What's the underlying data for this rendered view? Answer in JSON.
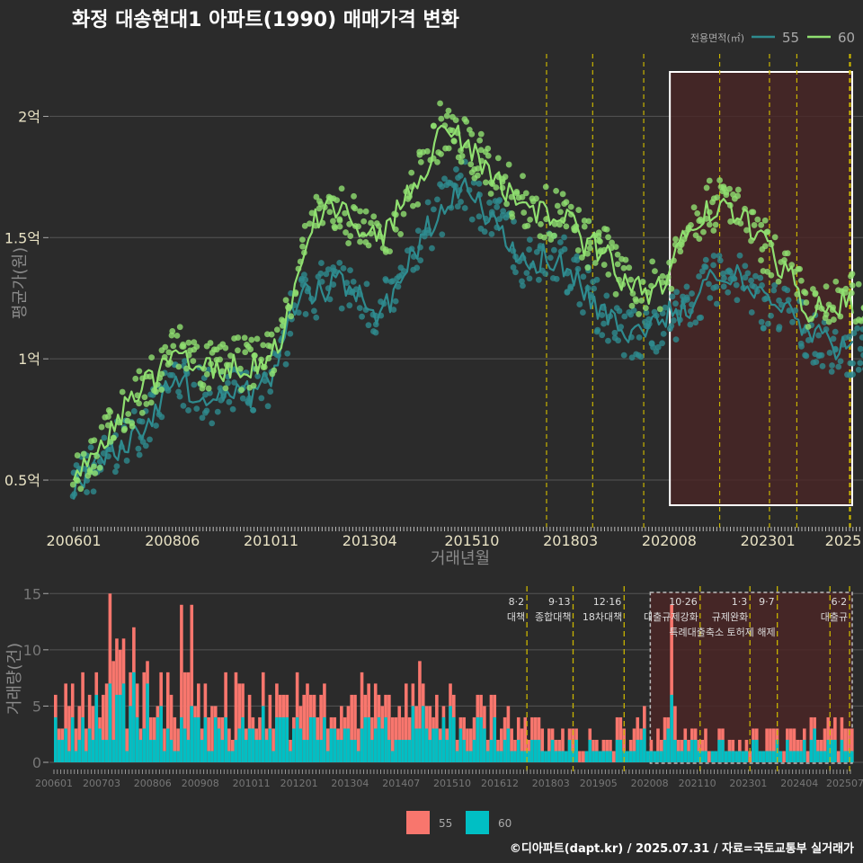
{
  "chart_data": [
    {
      "type": "line",
      "title": "화정 대송현대1 아파트(1990) 매매가격 변화",
      "xlabel": "거래년월",
      "ylabel": "평균가(원)",
      "x_ticks": [
        "200601",
        "200806",
        "201011",
        "201304",
        "201510",
        "201803",
        "202008",
        "202301",
        "2025"
      ],
      "y_ticks": [
        {
          "value": 0.5,
          "label": "0.5억"
        },
        {
          "value": 1.0,
          "label": "1억"
        },
        {
          "value": 1.5,
          "label": "1.5억"
        },
        {
          "value": 2.0,
          "label": "2억"
        }
      ],
      "y_unit": "억원",
      "ylim": [
        0.3,
        2.25
      ],
      "grid": true,
      "legend_title": "전용면적(㎡)",
      "legend_position": "top-right",
      "series": [
        {
          "name": "55",
          "color": "#2e8b8f",
          "anchors": [
            [
              2006.0,
              0.48
            ],
            [
              2006.5,
              0.55
            ],
            [
              2007.0,
              0.62
            ],
            [
              2007.5,
              0.7
            ],
            [
              2008.0,
              0.78
            ],
            [
              2008.5,
              0.92
            ],
            [
              2009.0,
              0.86
            ],
            [
              2009.5,
              0.84
            ],
            [
              2010.0,
              0.86
            ],
            [
              2010.5,
              0.86
            ],
            [
              2011.0,
              0.95
            ],
            [
              2011.5,
              1.28
            ],
            [
              2012.0,
              1.28
            ],
            [
              2012.5,
              1.32
            ],
            [
              2013.0,
              1.25
            ],
            [
              2013.5,
              1.18
            ],
            [
              2014.0,
              1.3
            ],
            [
              2014.5,
              1.5
            ],
            [
              2015.0,
              1.62
            ],
            [
              2015.5,
              1.72
            ],
            [
              2016.0,
              1.62
            ],
            [
              2016.5,
              1.55
            ],
            [
              2017.0,
              1.4
            ],
            [
              2017.5,
              1.42
            ],
            [
              2018.0,
              1.4
            ],
            [
              2018.5,
              1.3
            ],
            [
              2019.0,
              1.18
            ],
            [
              2019.5,
              1.1
            ],
            [
              2020.0,
              1.1
            ],
            [
              2020.5,
              1.18
            ],
            [
              2021.0,
              1.2
            ],
            [
              2021.5,
              1.3
            ],
            [
              2022.0,
              1.36
            ],
            [
              2022.5,
              1.3
            ],
            [
              2023.0,
              1.22
            ],
            [
              2023.5,
              1.2
            ],
            [
              2024.0,
              1.1
            ],
            [
              2024.5,
              1.06
            ],
            [
              2025.0,
              1.02
            ],
            [
              2025.5,
              1.02
            ]
          ]
        },
        {
          "name": "60",
          "color": "#90e070",
          "anchors": [
            [
              2006.0,
              0.54
            ],
            [
              2006.5,
              0.62
            ],
            [
              2007.0,
              0.72
            ],
            [
              2007.5,
              0.85
            ],
            [
              2008.0,
              0.92
            ],
            [
              2008.5,
              1.05
            ],
            [
              2009.0,
              0.98
            ],
            [
              2009.5,
              0.95
            ],
            [
              2010.0,
              0.98
            ],
            [
              2010.5,
              0.98
            ],
            [
              2011.0,
              1.05
            ],
            [
              2011.5,
              1.38
            ],
            [
              2012.0,
              1.6
            ],
            [
              2012.5,
              1.62
            ],
            [
              2013.0,
              1.55
            ],
            [
              2013.5,
              1.48
            ],
            [
              2014.0,
              1.62
            ],
            [
              2014.5,
              1.75
            ],
            [
              2015.0,
              1.95
            ],
            [
              2015.5,
              1.9
            ],
            [
              2016.0,
              1.82
            ],
            [
              2016.5,
              1.72
            ],
            [
              2017.0,
              1.65
            ],
            [
              2017.5,
              1.6
            ],
            [
              2018.0,
              1.6
            ],
            [
              2018.5,
              1.48
            ],
            [
              2019.0,
              1.45
            ],
            [
              2019.5,
              1.3
            ],
            [
              2020.0,
              1.28
            ],
            [
              2020.5,
              1.32
            ],
            [
              2021.0,
              1.55
            ],
            [
              2021.5,
              1.62
            ],
            [
              2022.0,
              1.65
            ],
            [
              2022.5,
              1.55
            ],
            [
              2023.0,
              1.45
            ],
            [
              2023.5,
              1.35
            ],
            [
              2024.0,
              1.2
            ],
            [
              2024.5,
              1.2
            ],
            [
              2025.0,
              1.25
            ],
            [
              2025.5,
              1.22
            ]
          ]
        }
      ]
    },
    {
      "type": "bar",
      "ylabel": "거래량(건)",
      "x_ticks": [
        "200601",
        "200703",
        "200806",
        "200908",
        "201011",
        "201201",
        "201304",
        "201407",
        "201510",
        "201612",
        "201803",
        "201905",
        "202008",
        "202110",
        "202301",
        "202404",
        "202507"
      ],
      "y_ticks": [
        0,
        5,
        10,
        15
      ],
      "ylim": [
        0,
        15.5
      ],
      "grid": true,
      "legend_position": "bottom",
      "series": [
        {
          "name": "55",
          "color": "#f8766d"
        },
        {
          "name": "60",
          "color": "#00bfc4"
        }
      ],
      "profile": [
        [
          2006.0,
          5.0
        ],
        [
          2007.0,
          7.0
        ],
        [
          2008.0,
          7.5
        ],
        [
          2009.0,
          5.0
        ],
        [
          2010.0,
          5.5
        ],
        [
          2011.0,
          5.5
        ],
        [
          2012.0,
          5.0
        ],
        [
          2013.0,
          4.5
        ],
        [
          2014.0,
          5.5
        ],
        [
          2015.0,
          5.5
        ],
        [
          2016.0,
          4.5
        ],
        [
          2017.0,
          3.5
        ],
        [
          2018.0,
          2.5
        ],
        [
          2019.0,
          1.8
        ],
        [
          2020.0,
          2.8
        ],
        [
          2021.0,
          3.5
        ],
        [
          2022.0,
          2.0
        ],
        [
          2023.0,
          2.0
        ],
        [
          2024.0,
          2.2
        ],
        [
          2025.0,
          2.5
        ]
      ],
      "highlight_values": [
        [
          2007.3,
          15
        ],
        [
          2009.1,
          14
        ],
        [
          2009.3,
          14
        ],
        [
          2021.1,
          14
        ]
      ]
    }
  ],
  "policy_events": [
    {
      "date": 2017.58,
      "code": "8·2",
      "label": "대책"
    },
    {
      "date": 2018.71,
      "code": "9·13",
      "label": "종합대책"
    },
    {
      "date": 2019.96,
      "code": "12·16",
      "label": "18차대책"
    },
    {
      "date": 2021.82,
      "code": "10·26",
      "label": "대출규제강화"
    },
    {
      "date": 2023.04,
      "code": "1·3",
      "label": "규제완화"
    },
    {
      "date": 2023.71,
      "code": "9·7",
      "label": "특례대출축소 토허제 해제"
    },
    {
      "date": 2025.0,
      "code": "",
      "label": ""
    },
    {
      "date": 2025.48,
      "code": "6·2",
      "label": "대출규"
    }
  ],
  "highlight_range": [
    2020.6,
    2025.5
  ],
  "legend": {
    "title": "전용면적(㎡)",
    "items": [
      "55",
      "60"
    ]
  },
  "colors": {
    "bg": "#2b2b2b",
    "grid": "#555555",
    "event_line": "#c8b400",
    "highlight_fill": "#4a2626",
    "highlight_border_top": "#ffffff",
    "accent_55": "#f8766d",
    "accent_60": "#00bfc4"
  },
  "footer": "©디아파트(dapt.kr) / 2025.07.31 / 자료=국토교통부 실거래가"
}
